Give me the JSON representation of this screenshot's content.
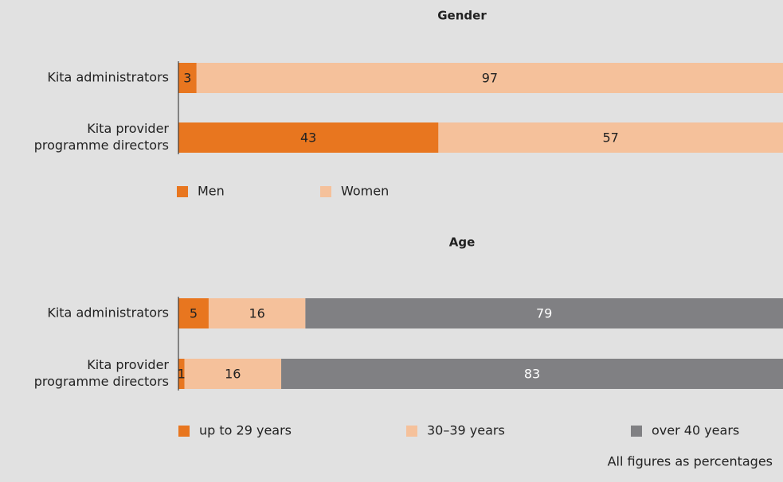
{
  "chart_data": [
    {
      "type": "stacked_barh",
      "title": "Gender",
      "categories": [
        [
          "Kita administrators"
        ],
        [
          "Kita provider",
          "programme directors"
        ]
      ],
      "series": [
        {
          "name": "Men",
          "color": "#e8761f",
          "label_color": "#222222",
          "values": [
            3,
            43
          ]
        },
        {
          "name": "Women",
          "color": "#f5c19b",
          "label_color": "#222222",
          "values": [
            97,
            57
          ]
        }
      ],
      "xlim": [
        0,
        100
      ]
    },
    {
      "type": "stacked_barh",
      "title": "Age",
      "categories": [
        [
          "Kita administrators"
        ],
        [
          "Kita provider",
          "programme directors"
        ]
      ],
      "series": [
        {
          "name": "up to 29 years",
          "color": "#e8761f",
          "label_color": "#222222",
          "values": [
            5,
            1
          ]
        },
        {
          "name": "30–39 years",
          "color": "#f5c19b",
          "label_color": "#222222",
          "values": [
            16,
            16
          ]
        },
        {
          "name": "over 40 years",
          "color": "#808083",
          "label_color": "#ffffff",
          "values": [
            79,
            83
          ]
        }
      ],
      "xlim": [
        0,
        100
      ]
    }
  ],
  "note": "All figures as percentages"
}
